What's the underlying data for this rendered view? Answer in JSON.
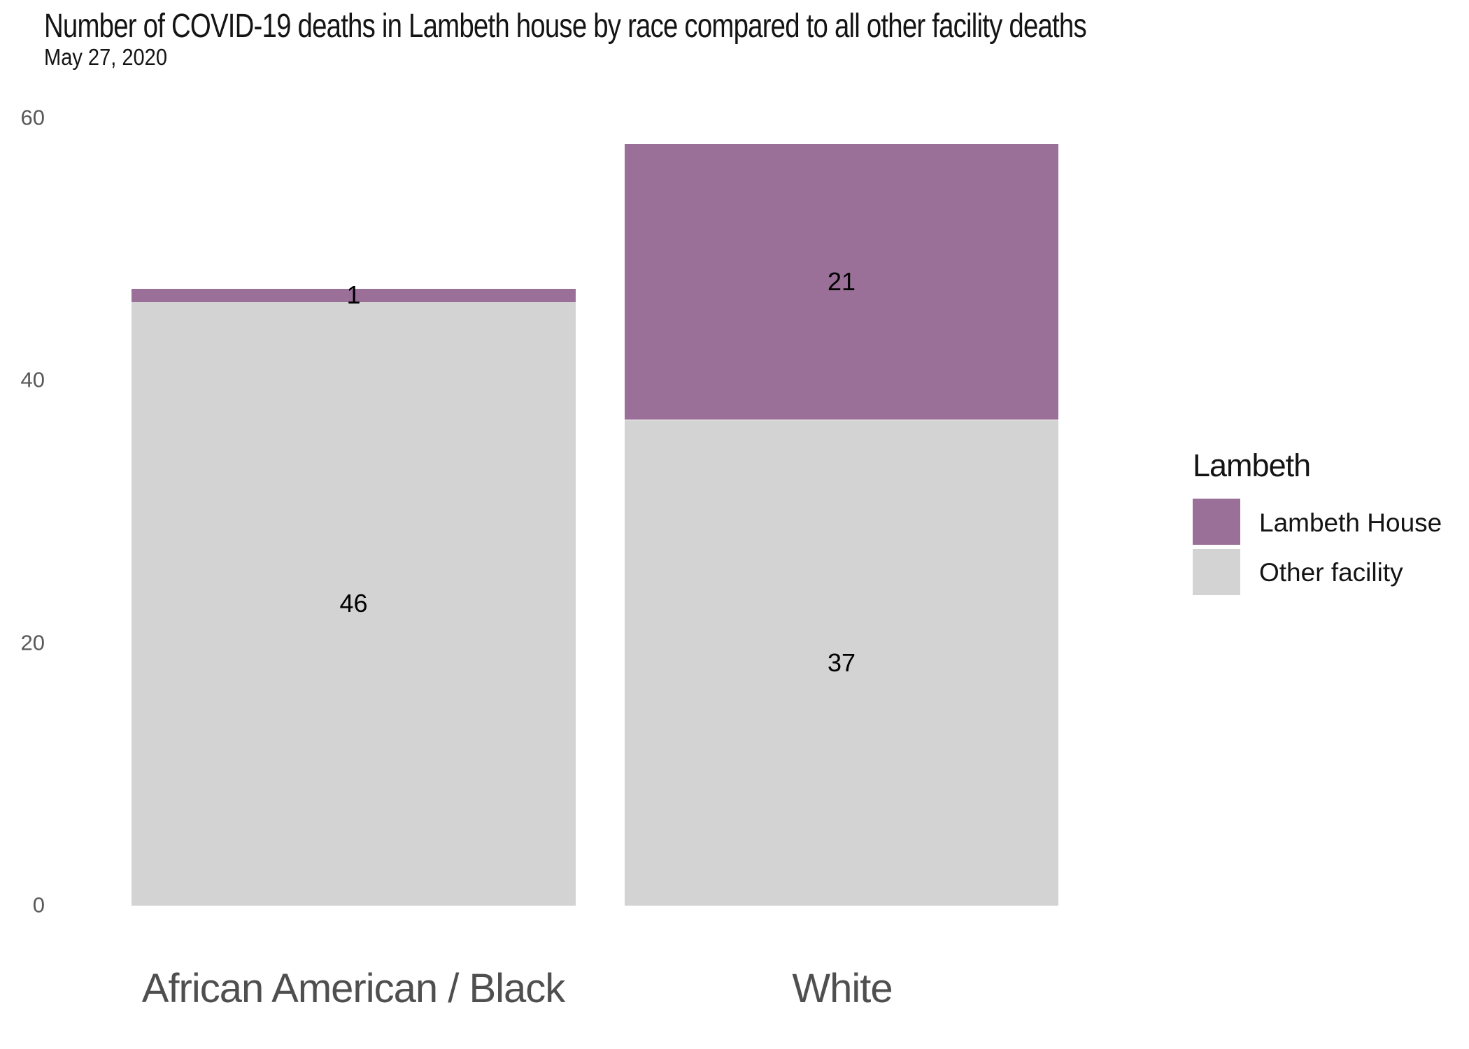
{
  "chart_data": {
    "type": "bar",
    "stacked": true,
    "title": "Number of COVID-19 deaths in Lambeth house by race compared to all other facility deaths",
    "subtitle": "May 27, 2020",
    "categories": [
      "African American / Black",
      "White"
    ],
    "series": [
      {
        "name": "Lambeth House",
        "color": "#9A7099",
        "values": [
          1,
          21
        ]
      },
      {
        "name": "Other facility",
        "color": "#D3D3D3",
        "values": [
          46,
          37
        ]
      }
    ],
    "totals": [
      47,
      58
    ],
    "ylim": [
      0,
      60
    ],
    "yticks": [
      0,
      20,
      40,
      60
    ],
    "grid": false,
    "axis_lines": false,
    "legend": {
      "title": "Lambeth",
      "position": "right"
    }
  },
  "colors": {
    "background": "#FFFFFF",
    "lambeth_house": "#9A7099",
    "other_facility": "#D3D3D3",
    "axis_tick_text": "#585858",
    "category_text": "#4F4F4F",
    "title_text": "#141414",
    "value_label_text": "#000000"
  }
}
